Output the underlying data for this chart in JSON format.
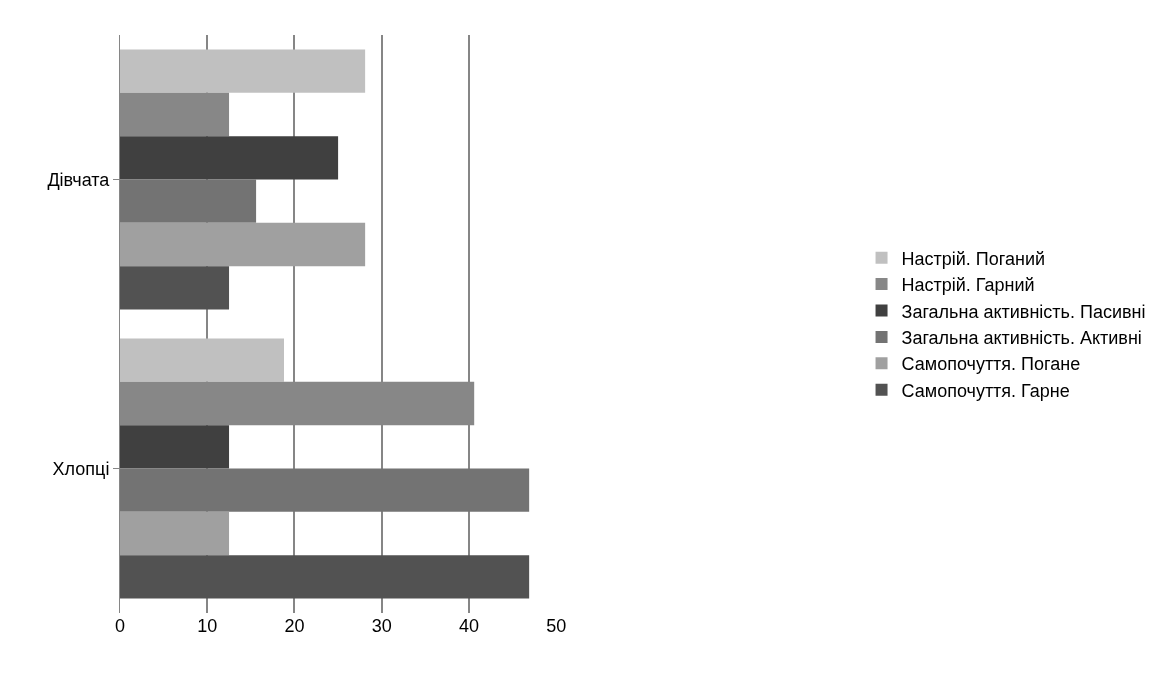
{
  "chart_data": {
    "type": "bar",
    "orientation": "horizontal",
    "categories": [
      "Дівчата",
      "Хлопці"
    ],
    "series": [
      {
        "name": "Настрій. Поганий",
        "color": "#c0c0c0",
        "values": [
          28.1,
          18.8
        ]
      },
      {
        "name": "Настрій. Гарний",
        "color": "#878787",
        "values": [
          12.5,
          40.6
        ]
      },
      {
        "name": "Загальна активність. Пасивні",
        "color": "#404040",
        "values": [
          25,
          12.5
        ]
      },
      {
        "name": "Загальна активність. Активні",
        "color": "#737373",
        "values": [
          15.6,
          46.9
        ]
      },
      {
        "name": "Самопочуття. Погане",
        "color": "#a0a0a0",
        "values": [
          28.1,
          12.5
        ]
      },
      {
        "name": "Самопочуття. Гарне",
        "color": "#525252",
        "values": [
          12.5,
          46.9
        ]
      }
    ],
    "xlim": [
      0,
      50
    ],
    "xticks": [
      0,
      10,
      20,
      30,
      40,
      50
    ],
    "grid": "x",
    "legend": "right"
  }
}
